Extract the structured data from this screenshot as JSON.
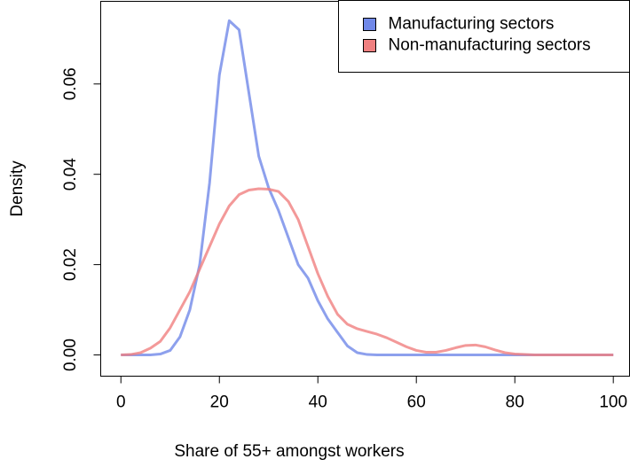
{
  "chart_data": {
    "type": "line",
    "x_label": "Share of 55+ amongst workers",
    "y_label": "Density",
    "x": [
      0,
      2,
      4,
      6,
      8,
      10,
      12,
      14,
      16,
      18,
      20,
      22,
      24,
      26,
      28,
      30,
      32,
      34,
      36,
      38,
      40,
      42,
      44,
      46,
      48,
      50,
      52,
      54,
      56,
      58,
      60,
      62,
      64,
      66,
      68,
      70,
      72,
      74,
      76,
      78,
      80,
      82,
      84,
      86,
      88,
      90,
      92,
      94,
      96,
      98,
      100
    ],
    "series": [
      {
        "name": "Manufacturing sectors",
        "color": "#7088e8",
        "values": [
          0,
          0,
          0,
          0,
          0.0002,
          0.001,
          0.004,
          0.01,
          0.02,
          0.038,
          0.062,
          0.074,
          0.072,
          0.058,
          0.044,
          0.037,
          0.032,
          0.026,
          0.02,
          0.017,
          0.012,
          0.008,
          0.005,
          0.002,
          0.0005,
          0.0001,
          0,
          0,
          0,
          0,
          0,
          0,
          0,
          0,
          0,
          0,
          0,
          0,
          0,
          0,
          0,
          0,
          0,
          0,
          0,
          0,
          0,
          0,
          0,
          0,
          0
        ]
      },
      {
        "name": "Non-manufacturing sectors",
        "color": "#f08080",
        "values": [
          0,
          0.0001,
          0.0005,
          0.0015,
          0.003,
          0.006,
          0.01,
          0.014,
          0.019,
          0.024,
          0.029,
          0.033,
          0.0355,
          0.0365,
          0.0368,
          0.0367,
          0.0362,
          0.034,
          0.03,
          0.024,
          0.018,
          0.013,
          0.009,
          0.0068,
          0.0058,
          0.0052,
          0.0046,
          0.0038,
          0.0028,
          0.0018,
          0.001,
          0.0006,
          0.0006,
          0.001,
          0.0016,
          0.0021,
          0.0022,
          0.0018,
          0.0011,
          0.0005,
          0.0002,
          0.0001,
          0,
          0,
          0,
          0,
          0,
          0,
          0,
          0,
          0
        ]
      }
    ],
    "xlim": [
      -4.1,
      103.3
    ],
    "ylim": [
      -0.0047,
      0.0783
    ],
    "xticks": [
      0,
      20,
      40,
      60,
      80,
      100
    ],
    "yticks": [
      {
        "value": 0,
        "label": "0.00"
      },
      {
        "value": 0.02,
        "label": "0.02"
      },
      {
        "value": 0.04,
        "label": "0.04"
      },
      {
        "value": 0.06,
        "label": "0.06"
      }
    ],
    "grid": false,
    "legend": "topright"
  }
}
